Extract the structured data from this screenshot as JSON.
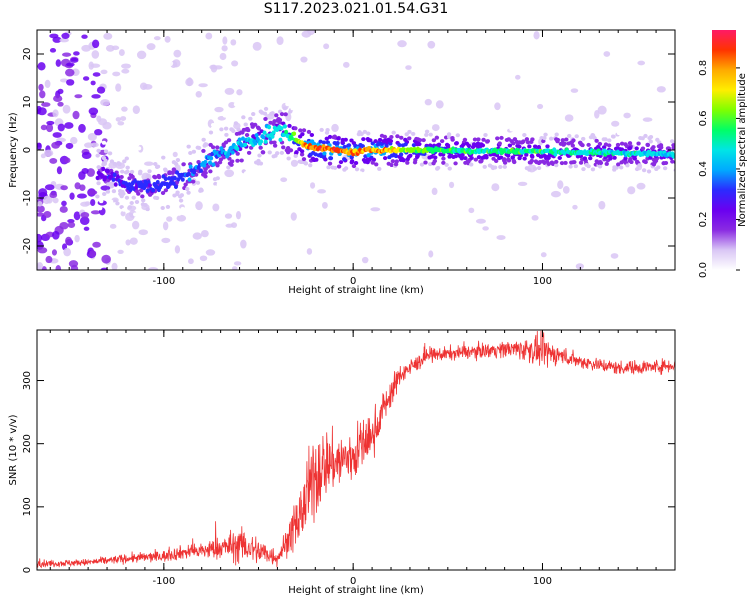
{
  "title": "S117.2023.021.01.54.G31",
  "chart_data": [
    {
      "type": "heatmap",
      "xlabel": "Height of straight line (km)",
      "ylabel": "Frequency (Hz)",
      "xlim": [
        -167,
        170
      ],
      "ylim": [
        -25,
        25
      ],
      "xticks": [
        -100,
        0,
        100
      ],
      "yticks": [
        -20,
        -10,
        0,
        10,
        20
      ],
      "colorbar": {
        "label": "Normalized spectral amplitude",
        "range": [
          0,
          0.95
        ],
        "ticks": [
          "0.0",
          "0.2",
          "0.4",
          "0.6",
          "0.8"
        ],
        "colormap": [
          "#ffffff",
          "#d9c6f5",
          "#8a2be2",
          "#6a00f0",
          "#2b2bff",
          "#00aaff",
          "#00e5e5",
          "#00ff66",
          "#7fff00",
          "#ffee00",
          "#ffaa00",
          "#ff3300",
          "#ff1a66"
        ]
      },
      "ridge": {
        "x": [
          -130,
          -120,
          -110,
          -100,
          -90,
          -80,
          -70,
          -60,
          -50,
          -40,
          -35,
          -30,
          -25,
          -20,
          -10,
          0,
          10,
          20,
          40,
          60,
          80,
          100,
          120,
          140,
          160,
          170
        ],
        "freq": [
          -5,
          -7,
          -7.5,
          -7,
          -6,
          -3,
          -1,
          1,
          2.5,
          4,
          3.5,
          2,
          1,
          0.5,
          0,
          -0.5,
          0,
          0,
          0,
          -0.2,
          -0.2,
          -0.3,
          -0.5,
          -0.6,
          -0.8,
          -1.0
        ],
        "amplitude": [
          0.25,
          0.3,
          0.32,
          0.32,
          0.35,
          0.38,
          0.4,
          0.42,
          0.45,
          0.48,
          0.5,
          0.6,
          0.8,
          0.9,
          0.85,
          0.8,
          0.85,
          0.75,
          0.6,
          0.55,
          0.55,
          0.55,
          0.5,
          0.5,
          0.45,
          0.45
        ]
      }
    },
    {
      "type": "line",
      "xlabel": "Height of straight line (km)",
      "ylabel": "SNR (10 * v/v)",
      "xlim": [
        -167,
        170
      ],
      "ylim": [
        0,
        380
      ],
      "xticks": [
        -100,
        0,
        100
      ],
      "yticks": [
        0,
        100,
        200,
        300
      ],
      "color": "#ee3333",
      "envelope": {
        "x": [
          -167,
          -140,
          -120,
          -100,
          -90,
          -80,
          -70,
          -60,
          -50,
          -40,
          -35,
          -30,
          -25,
          -20,
          -15,
          -10,
          -5,
          0,
          5,
          10,
          15,
          20,
          25,
          30,
          40,
          60,
          80,
          90,
          100,
          110,
          120,
          140,
          160,
          170
        ],
        "mean": [
          10,
          12,
          18,
          22,
          28,
          30,
          35,
          40,
          30,
          20,
          45,
          70,
          110,
          150,
          170,
          170,
          175,
          180,
          200,
          210,
          250,
          280,
          310,
          320,
          340,
          345,
          350,
          350,
          345,
          340,
          330,
          320,
          322,
          325
        ],
        "spread": [
          6,
          6,
          8,
          10,
          12,
          15,
          20,
          30,
          25,
          15,
          25,
          40,
          60,
          80,
          60,
          50,
          50,
          50,
          45,
          40,
          30,
          25,
          18,
          15,
          12,
          12,
          14,
          20,
          28,
          15,
          12,
          12,
          12,
          12
        ]
      }
    }
  ]
}
